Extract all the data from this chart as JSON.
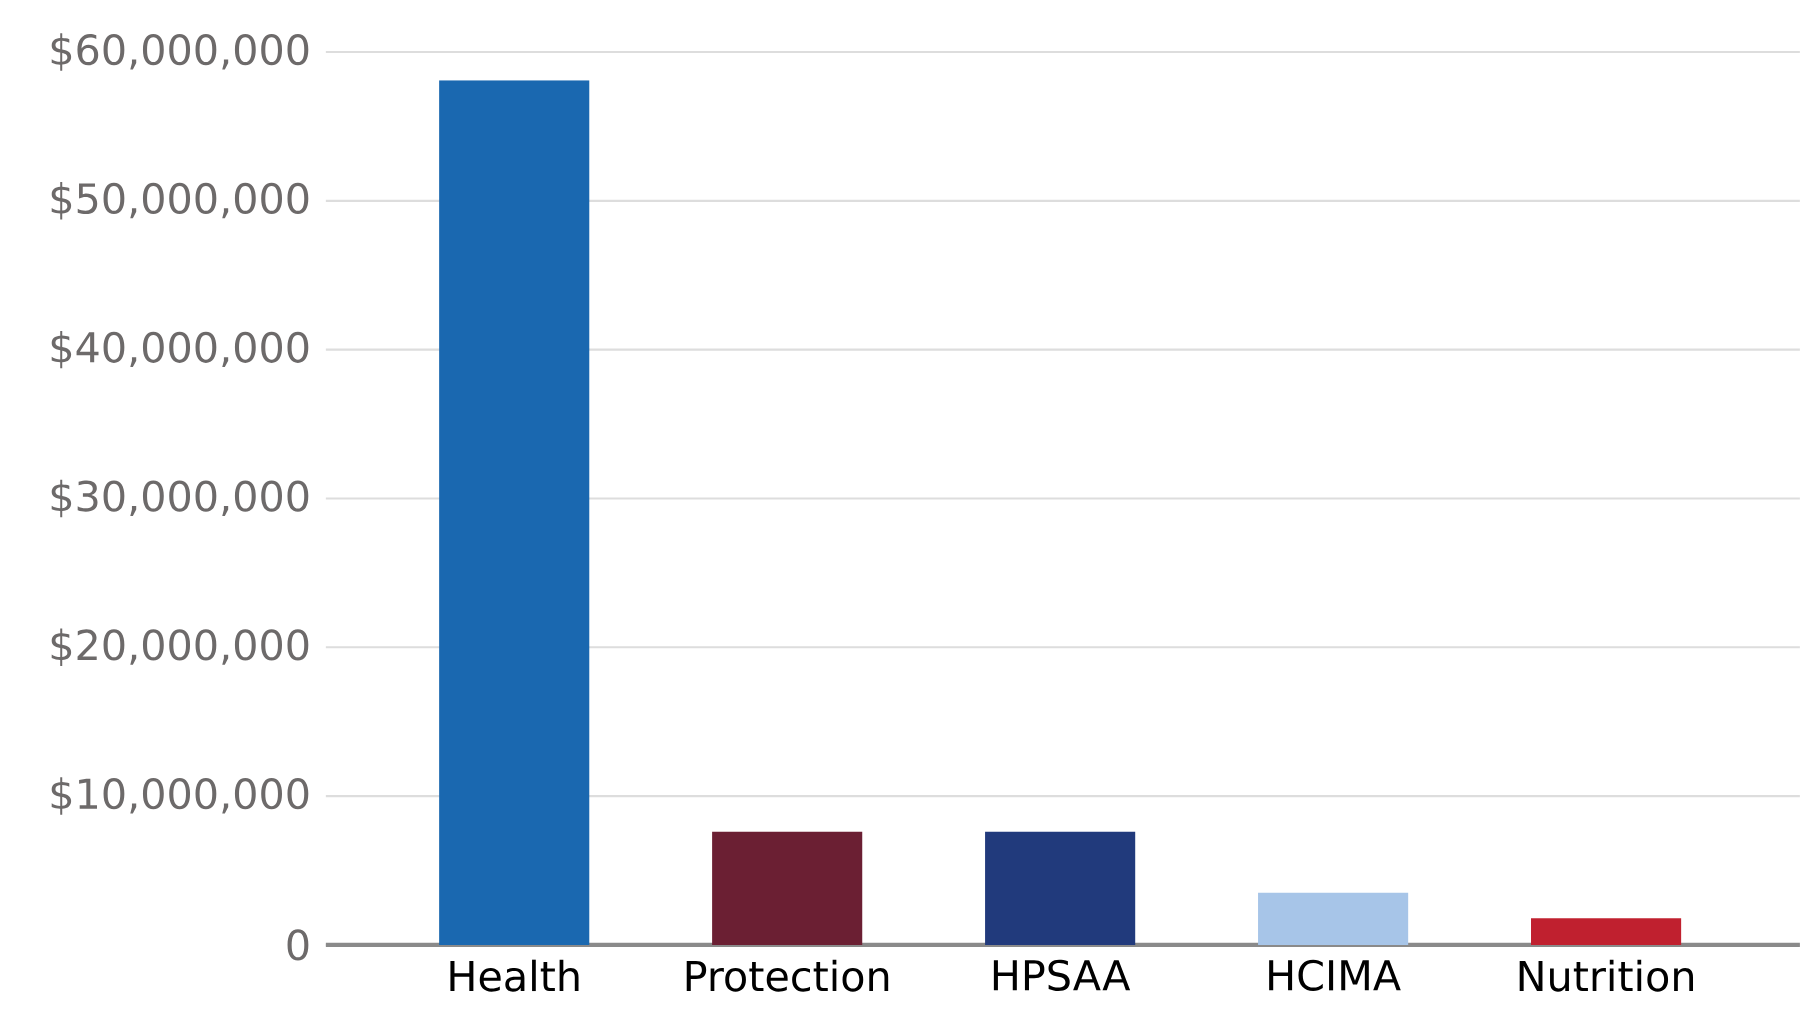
{
  "chart_data": {
    "type": "bar",
    "categories": [
      "Health",
      "Protection",
      "HPSAA",
      "HCIMA",
      "Nutrition"
    ],
    "values": [
      58100000,
      7600000,
      7600000,
      3500000,
      1800000
    ],
    "colors": [
      "#1a68b0",
      "#6b1f33",
      "#213a7c",
      "#a7c5e8",
      "#c0202f"
    ],
    "ylim": [
      0,
      60000000
    ],
    "yticks": [
      {
        "value": 0,
        "label": "0"
      },
      {
        "value": 10000000,
        "label": "$10,000,000"
      },
      {
        "value": 20000000,
        "label": "$20,000,000"
      },
      {
        "value": 30000000,
        "label": "$30,000,000"
      },
      {
        "value": 40000000,
        "label": "$40,000,000"
      },
      {
        "value": 50000000,
        "label": "$50,000,000"
      },
      {
        "value": 60000000,
        "label": "$60,000,000"
      }
    ],
    "grid": "y"
  }
}
